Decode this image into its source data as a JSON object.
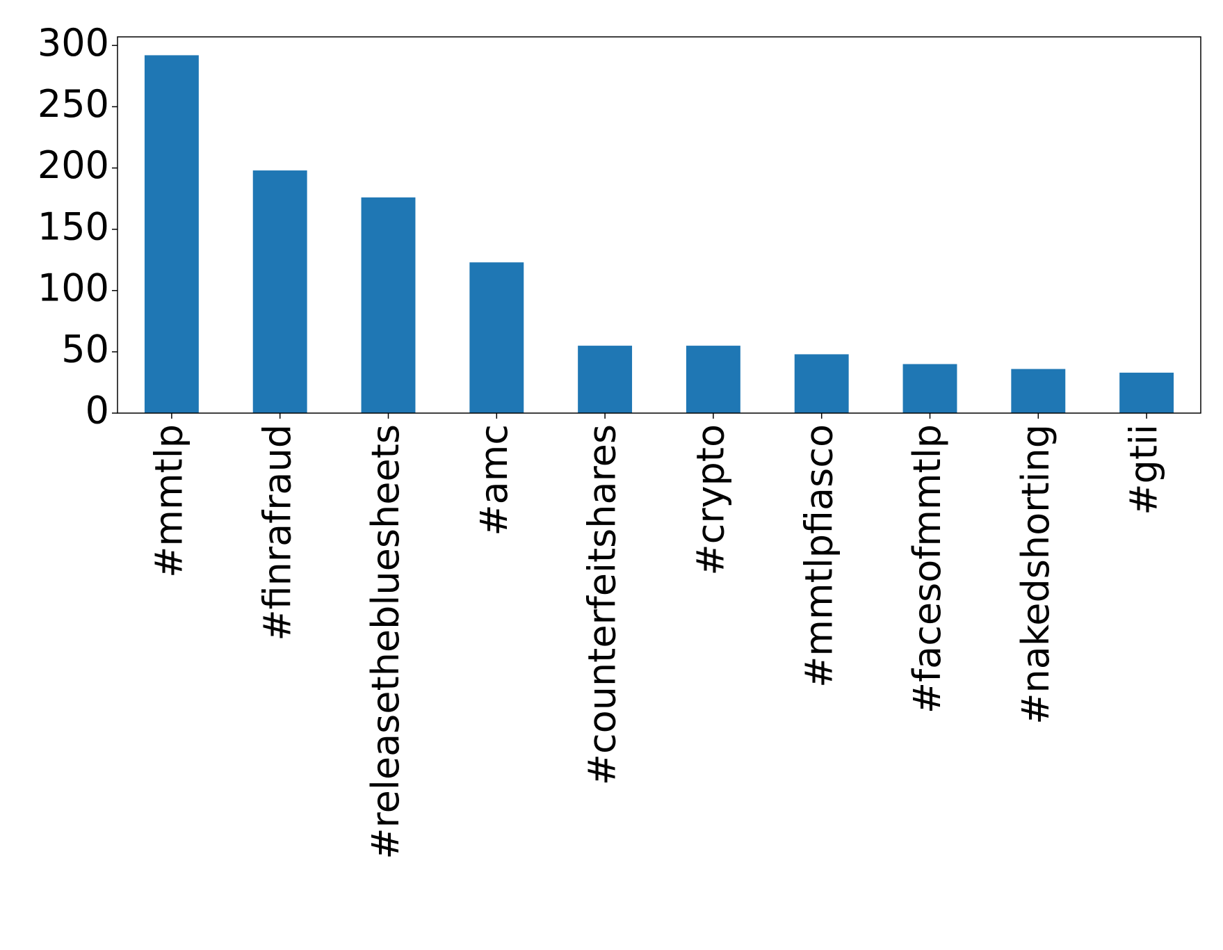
{
  "chart_data": {
    "type": "bar",
    "categories": [
      "#mmtlp",
      "#finrafraud",
      "#releasethebluesheets",
      "#amc",
      "#counterfeitshares",
      "#crypto",
      "#mmtlpfiasco",
      "#facesofmmtlp",
      "#nakedshorting",
      "#gtii"
    ],
    "values": [
      292,
      198,
      176,
      123,
      55,
      55,
      48,
      40,
      36,
      33
    ],
    "color": "#1f77b4",
    "ylim": [
      0,
      307
    ],
    "yticks": [
      0,
      50,
      100,
      150,
      200,
      250,
      300
    ],
    "grid": false
  }
}
